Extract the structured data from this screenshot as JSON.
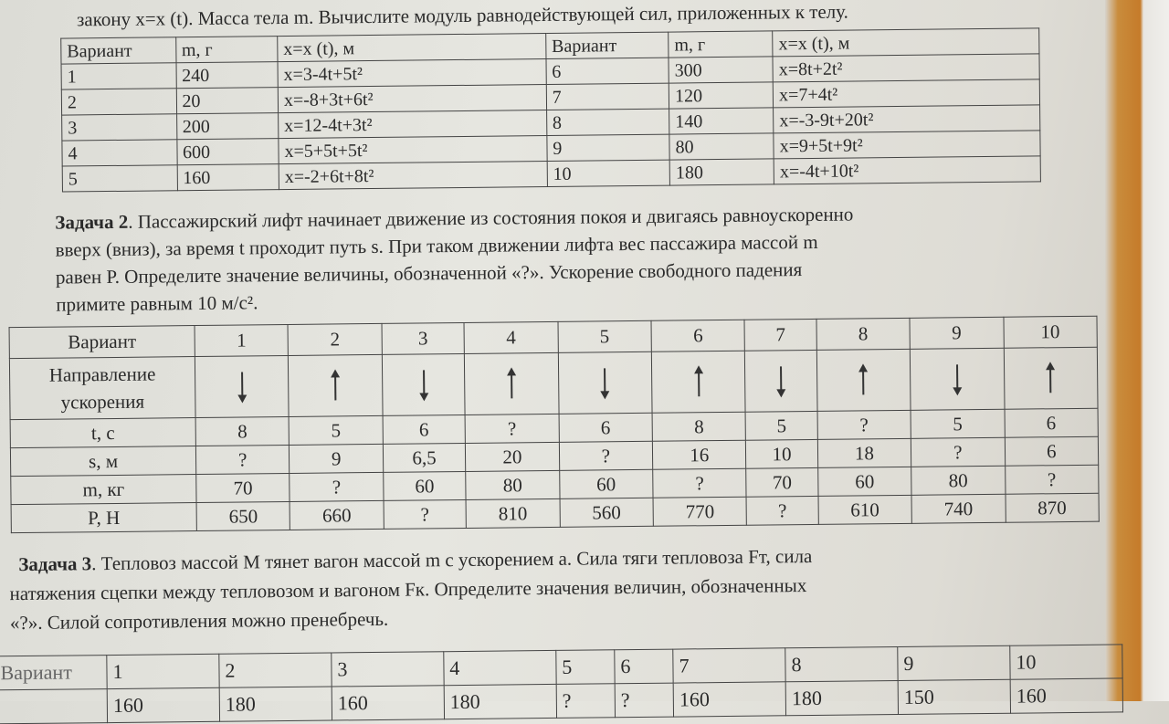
{
  "intro_line": "закону x=x (t). Масса тела m. Вычислите модуль равнодействующей сил, приложенных к телу.",
  "table1": {
    "headers": [
      "Вариант",
      "m, г",
      "x=x (t), м",
      "Вариант",
      "m, г",
      "x=x (t), м"
    ],
    "rows": [
      [
        "1",
        "240",
        "x=3-4t+5t²",
        "6",
        "300",
        "x=8t+2t²"
      ],
      [
        "2",
        "20",
        "x=-8+3t+6t²",
        "7",
        "120",
        "x=7+4t²"
      ],
      [
        "3",
        "200",
        "x=12-4t+3t²",
        "8",
        "140",
        "x=-3-9t+20t²"
      ],
      [
        "4",
        "600",
        "x=5+5t+5t²",
        "9",
        "80",
        "x=9+5t+9t²"
      ],
      [
        "5",
        "160",
        "x=-2+6t+8t²",
        "10",
        "180",
        "x=-4t+10t²"
      ]
    ]
  },
  "task2": {
    "label": "Задача 2",
    "lines": [
      ". Пассажирский лифт начинает движение из состояния покоя и двигаясь равноускоренно",
      "вверх (вниз), за время t проходит путь s. При таком движении лифта вес пассажира массой m",
      "равен P. Определите значение величины, обозначенной «?». Ускорение свободного падения",
      "примите равным 10 м/с²."
    ]
  },
  "table2": {
    "header_label": "Вариант",
    "variants": [
      "1",
      "2",
      "3",
      "4",
      "5",
      "6",
      "7",
      "8",
      "9",
      "10"
    ],
    "direction_label": "Направление ускорения",
    "directions": [
      "down",
      "up",
      "down",
      "up",
      "down",
      "up",
      "down",
      "up",
      "down",
      "up"
    ],
    "rows": [
      {
        "label": "t, с",
        "values": [
          "8",
          "5",
          "6",
          "?",
          "6",
          "8",
          "5",
          "?",
          "5",
          "6"
        ]
      },
      {
        "label": "s, м",
        "values": [
          "?",
          "9",
          "6,5",
          "20",
          "?",
          "16",
          "10",
          "18",
          "?",
          "6"
        ]
      },
      {
        "label": "m, кг",
        "values": [
          "70",
          "?",
          "60",
          "80",
          "60",
          "?",
          "70",
          "60",
          "80",
          "?"
        ]
      },
      {
        "label": "P, Н",
        "values": [
          "650",
          "660",
          "?",
          "810",
          "560",
          "770",
          "?",
          "610",
          "740",
          "870"
        ]
      }
    ]
  },
  "task3": {
    "label": "Задача 3",
    "lines": [
      ". Тепловоз массой M тянет вагон массой m с ускорением a. Сила тяги тепловоза Fт, сила",
      "натяжения сцепки между тепловозом и вагоном Fк. Определите значения величин, обозначенных",
      "«?». Силой сопротивления можно пренебречь."
    ]
  },
  "table3": {
    "header_label": "Вариант",
    "variants": [
      "1",
      "2",
      "3",
      "4",
      "5",
      "6",
      "7",
      "8",
      "9",
      "10"
    ],
    "partial_row": [
      "160",
      "180",
      "160",
      "180",
      "?",
      "?",
      "160",
      "180",
      "150",
      "160"
    ]
  }
}
